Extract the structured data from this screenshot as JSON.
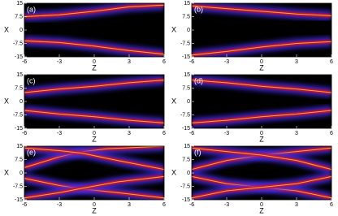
{
  "chart_data": [
    {
      "type": "heatmap",
      "title": "(a)",
      "x_label": "Z",
      "y_label": "X",
      "xlim": [
        -6,
        6
      ],
      "xticks": [
        -6,
        -3,
        0,
        3,
        6
      ],
      "ylim": [
        -15,
        15
      ],
      "yticks": [
        -15,
        -7.5,
        0,
        7.5,
        15
      ]
    },
    {
      "type": "heatmap",
      "title": "(b)",
      "x_label": "Z",
      "y_label": "X",
      "xlim": [
        -6,
        6
      ],
      "xticks": [
        -6,
        -3,
        0,
        3,
        6
      ],
      "ylim": [
        -15,
        15
      ],
      "yticks": [
        -15,
        -7.5,
        0,
        7.5,
        15
      ]
    },
    {
      "type": "heatmap",
      "title": "(c)",
      "x_label": "Z",
      "y_label": "X",
      "xlim": [
        -6,
        6
      ],
      "xticks": [
        -6,
        -3,
        0,
        3,
        6
      ],
      "ylim": [
        -15,
        15
      ],
      "yticks": [
        -15,
        -7.5,
        0,
        7.5,
        15
      ]
    },
    {
      "type": "heatmap",
      "title": "(d)",
      "x_label": "Z",
      "y_label": "X",
      "xlim": [
        -6,
        6
      ],
      "xticks": [
        -6,
        -3,
        0,
        3,
        6
      ],
      "ylim": [
        -15,
        15
      ],
      "yticks": [
        -15,
        -7.5,
        0,
        7.5,
        15
      ]
    },
    {
      "type": "heatmap",
      "title": "(e)",
      "x_label": "Z",
      "y_label": "X",
      "xlim": [
        -6,
        6
      ],
      "xticks": [
        -6,
        -3,
        0,
        3,
        6
      ],
      "ylim": [
        -15,
        15
      ],
      "yticks": [
        -15,
        -7.5,
        0,
        7.5,
        15
      ]
    },
    {
      "type": "heatmap",
      "title": "(f)",
      "x_label": "Z",
      "y_label": "X",
      "xlim": [
        -6,
        6
      ],
      "xticks": [
        -6,
        -3,
        0,
        3,
        6
      ],
      "ylim": [
        -15,
        15
      ],
      "yticks": [
        -15,
        -7.5,
        0,
        7.5,
        15
      ]
    }
  ]
}
